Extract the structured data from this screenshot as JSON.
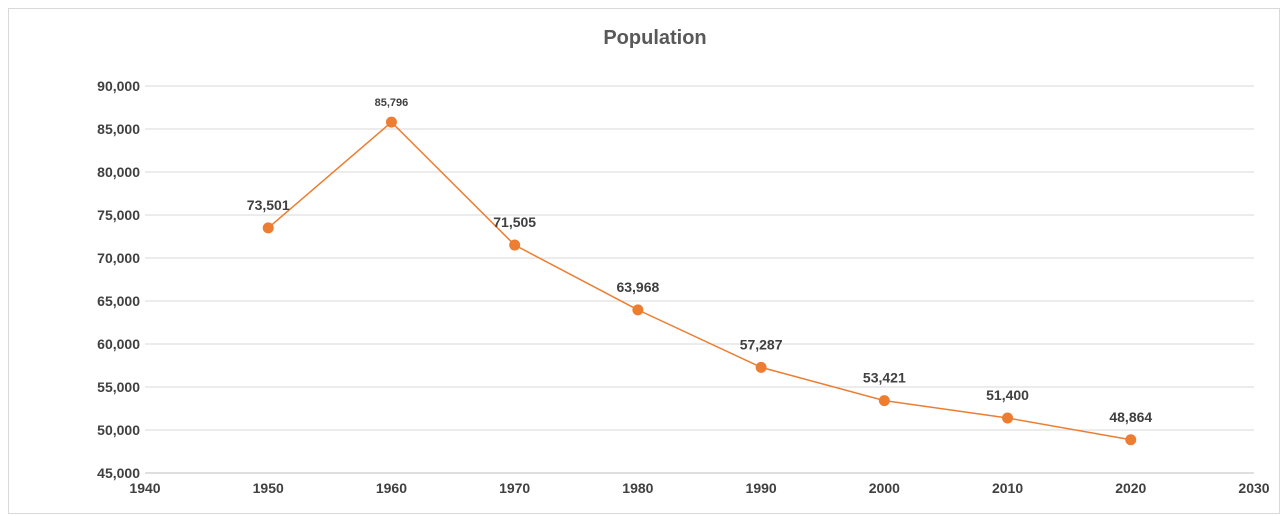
{
  "chart_data": {
    "type": "line",
    "title": "Population",
    "xlabel": "",
    "ylabel": "",
    "xlim": [
      1940,
      2030
    ],
    "ylim": [
      45000,
      90000
    ],
    "x_ticks": [
      "1940",
      "1950",
      "1960",
      "1970",
      "1980",
      "1990",
      "2000",
      "2010",
      "2020",
      "2030"
    ],
    "y_ticks": [
      "45,000",
      "50,000",
      "55,000",
      "60,000",
      "65,000",
      "70,000",
      "75,000",
      "80,000",
      "85,000",
      "90,000"
    ],
    "grid": true,
    "legend": "none",
    "line_color": "#ed7d31",
    "series": [
      {
        "x": [
          1950,
          1960,
          1970,
          1980,
          1990,
          2000,
          2010,
          2020
        ],
        "values": [
          73501,
          85796,
          71505,
          63968,
          57287,
          53421,
          51400,
          48864
        ],
        "labels": [
          "73,501",
          "85,796",
          "71,505",
          "63,968",
          "57,287",
          "53,421",
          "51,400",
          "48,864"
        ]
      }
    ]
  }
}
